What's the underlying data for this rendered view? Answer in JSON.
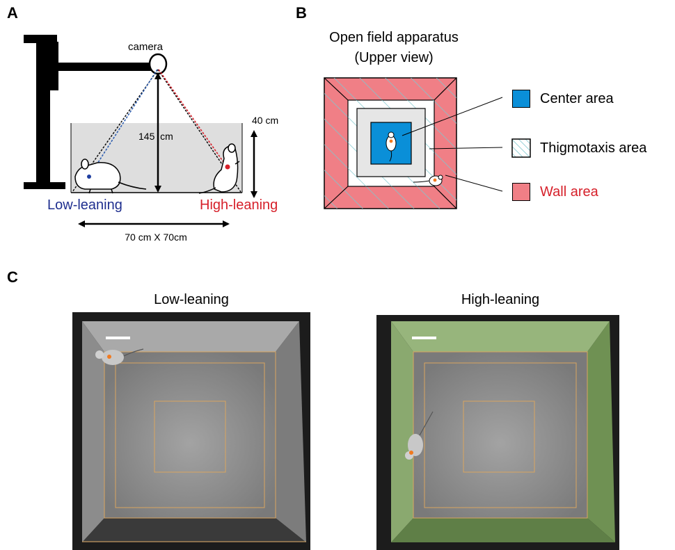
{
  "panels": {
    "a": {
      "letter": "A",
      "camera_label": "camera",
      "height_label": "145  cm",
      "wall_label": "40 cm",
      "floor_label": "70 cm X 70cm",
      "low_label": "Low-leaning",
      "high_label": "High-leaning"
    },
    "b": {
      "letter": "B",
      "title_line1": "Open field apparatus",
      "title_line2": "(Upper view)",
      "legend": [
        {
          "label": "Center area"
        },
        {
          "label": "Thigmotaxis area"
        },
        {
          "label": "Wall area"
        }
      ]
    },
    "c": {
      "letter": "C",
      "left_title": "Low-leaning",
      "right_title": "High-leaning"
    }
  },
  "colors": {
    "low": "#1f2f8f",
    "high": "#d6202a",
    "center": "#0a8fd8",
    "wall": "#f07f86",
    "thigmo_hatch": "#7fc7cf",
    "green_overlay": "#7fa35f",
    "orange_grid": "#d9a560",
    "dot": "#f07a20"
  }
}
